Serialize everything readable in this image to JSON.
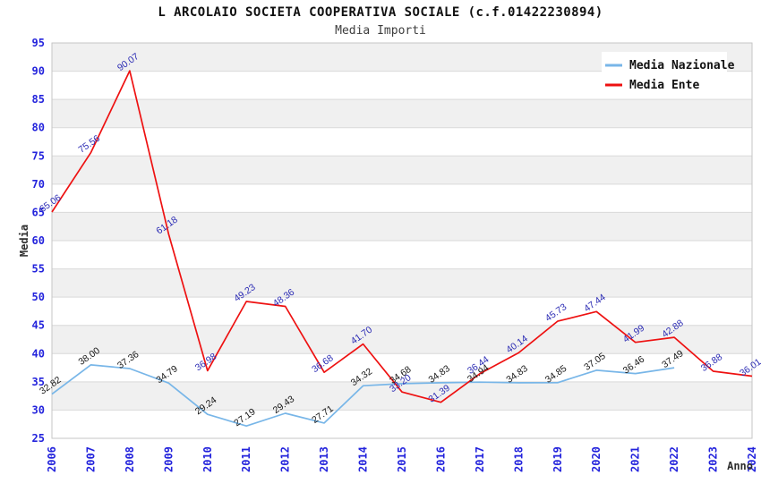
{
  "page": {
    "title": "L ARCOLAIO SOCIETA COOPERATIVA SOCIALE (c.f.01422230894)",
    "subtitle": "Media Importi"
  },
  "chart_data": {
    "type": "line",
    "title": "L ARCOLAIO SOCIETA COOPERATIVA SOCIALE (c.f.01422230894)",
    "subtitle": "Media Importi",
    "xlabel": "Anno",
    "ylabel": "Media",
    "x": [
      2006,
      2007,
      2008,
      2009,
      2010,
      2011,
      2012,
      2013,
      2014,
      2015,
      2016,
      2017,
      2018,
      2019,
      2020,
      2021,
      2022,
      2023,
      2024
    ],
    "series": [
      {
        "name": "Media Nazionale",
        "color": "#78b6e8",
        "label_color": "#161616",
        "values": [
          32.82,
          38.0,
          37.36,
          34.79,
          29.24,
          27.19,
          29.43,
          27.71,
          34.32,
          34.68,
          34.83,
          34.94,
          34.83,
          34.85,
          37.05,
          36.46,
          37.49,
          null,
          null
        ]
      },
      {
        "name": "Media Ente",
        "color": "#ee1111",
        "label_color": "#2b2bb4",
        "values": [
          65.06,
          75.56,
          90.07,
          61.18,
          36.98,
          49.23,
          48.36,
          36.68,
          41.7,
          33.2,
          31.39,
          36.44,
          40.14,
          45.73,
          47.44,
          41.99,
          42.88,
          36.88,
          36.01
        ]
      }
    ],
    "ylim": [
      25,
      95
    ],
    "ytick_step": 5,
    "grid": true,
    "band_color": "#f0f0f0",
    "gridline_color": "#d9d9d9",
    "border_color": "#c6c6c6",
    "axis_tick_color": "#2323dc",
    "axis_title_color": "#2e2e2e",
    "legend_position": "top-right",
    "legend_bg": "#ffffff"
  }
}
